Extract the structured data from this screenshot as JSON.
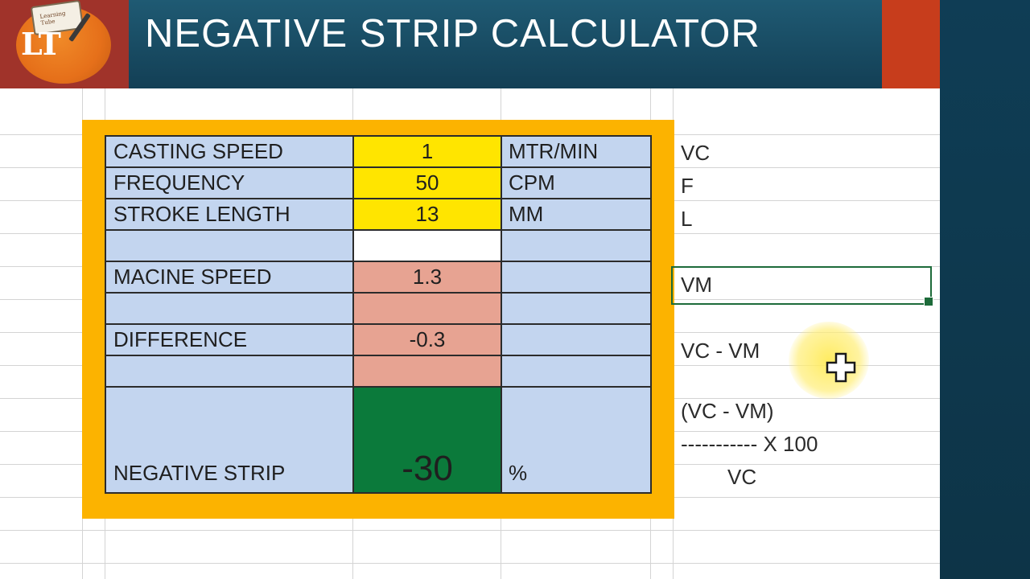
{
  "slide": {
    "title": "NEGATIVE STRIP CALCULATOR",
    "logo_text": "LT",
    "logo_book_text": "Learning Tube"
  },
  "table": {
    "rows": [
      {
        "label": "CASTING SPEED",
        "value": "1",
        "unit": "MTR/MIN"
      },
      {
        "label": "FREQUENCY",
        "value": "50",
        "unit": "CPM"
      },
      {
        "label": "STROKE LENGTH",
        "value": "13",
        "unit": "MM"
      },
      {
        "label": "",
        "value": "",
        "unit": ""
      },
      {
        "label": "MACINE SPEED",
        "value": "1.3",
        "unit": ""
      },
      {
        "label": "",
        "value": "",
        "unit": ""
      },
      {
        "label": "DIFFERENCE",
        "value": "-0.3",
        "unit": ""
      },
      {
        "label": "",
        "value": "",
        "unit": ""
      }
    ],
    "result": {
      "label": "NEGATIVE STRIP",
      "value": "-30",
      "unit": "%"
    }
  },
  "notes": {
    "vc": "VC",
    "f": "F",
    "l": "L",
    "vm": "VM",
    "diff": "VC - VM",
    "formula_top": "(VC - VM)",
    "formula_mid": "----------- X 100",
    "formula_bottom": "VC"
  },
  "colors": {
    "frame": "#fcb300",
    "input_cells": "#ffe500",
    "calc_cells": "#e7a392",
    "result_cell": "#0b7a3b",
    "table_bg": "#c3d5ef",
    "header_bg": "#164a63",
    "selection": "#1d6b3a"
  },
  "icons": {
    "cursor": "excel-plus-cursor-icon"
  }
}
